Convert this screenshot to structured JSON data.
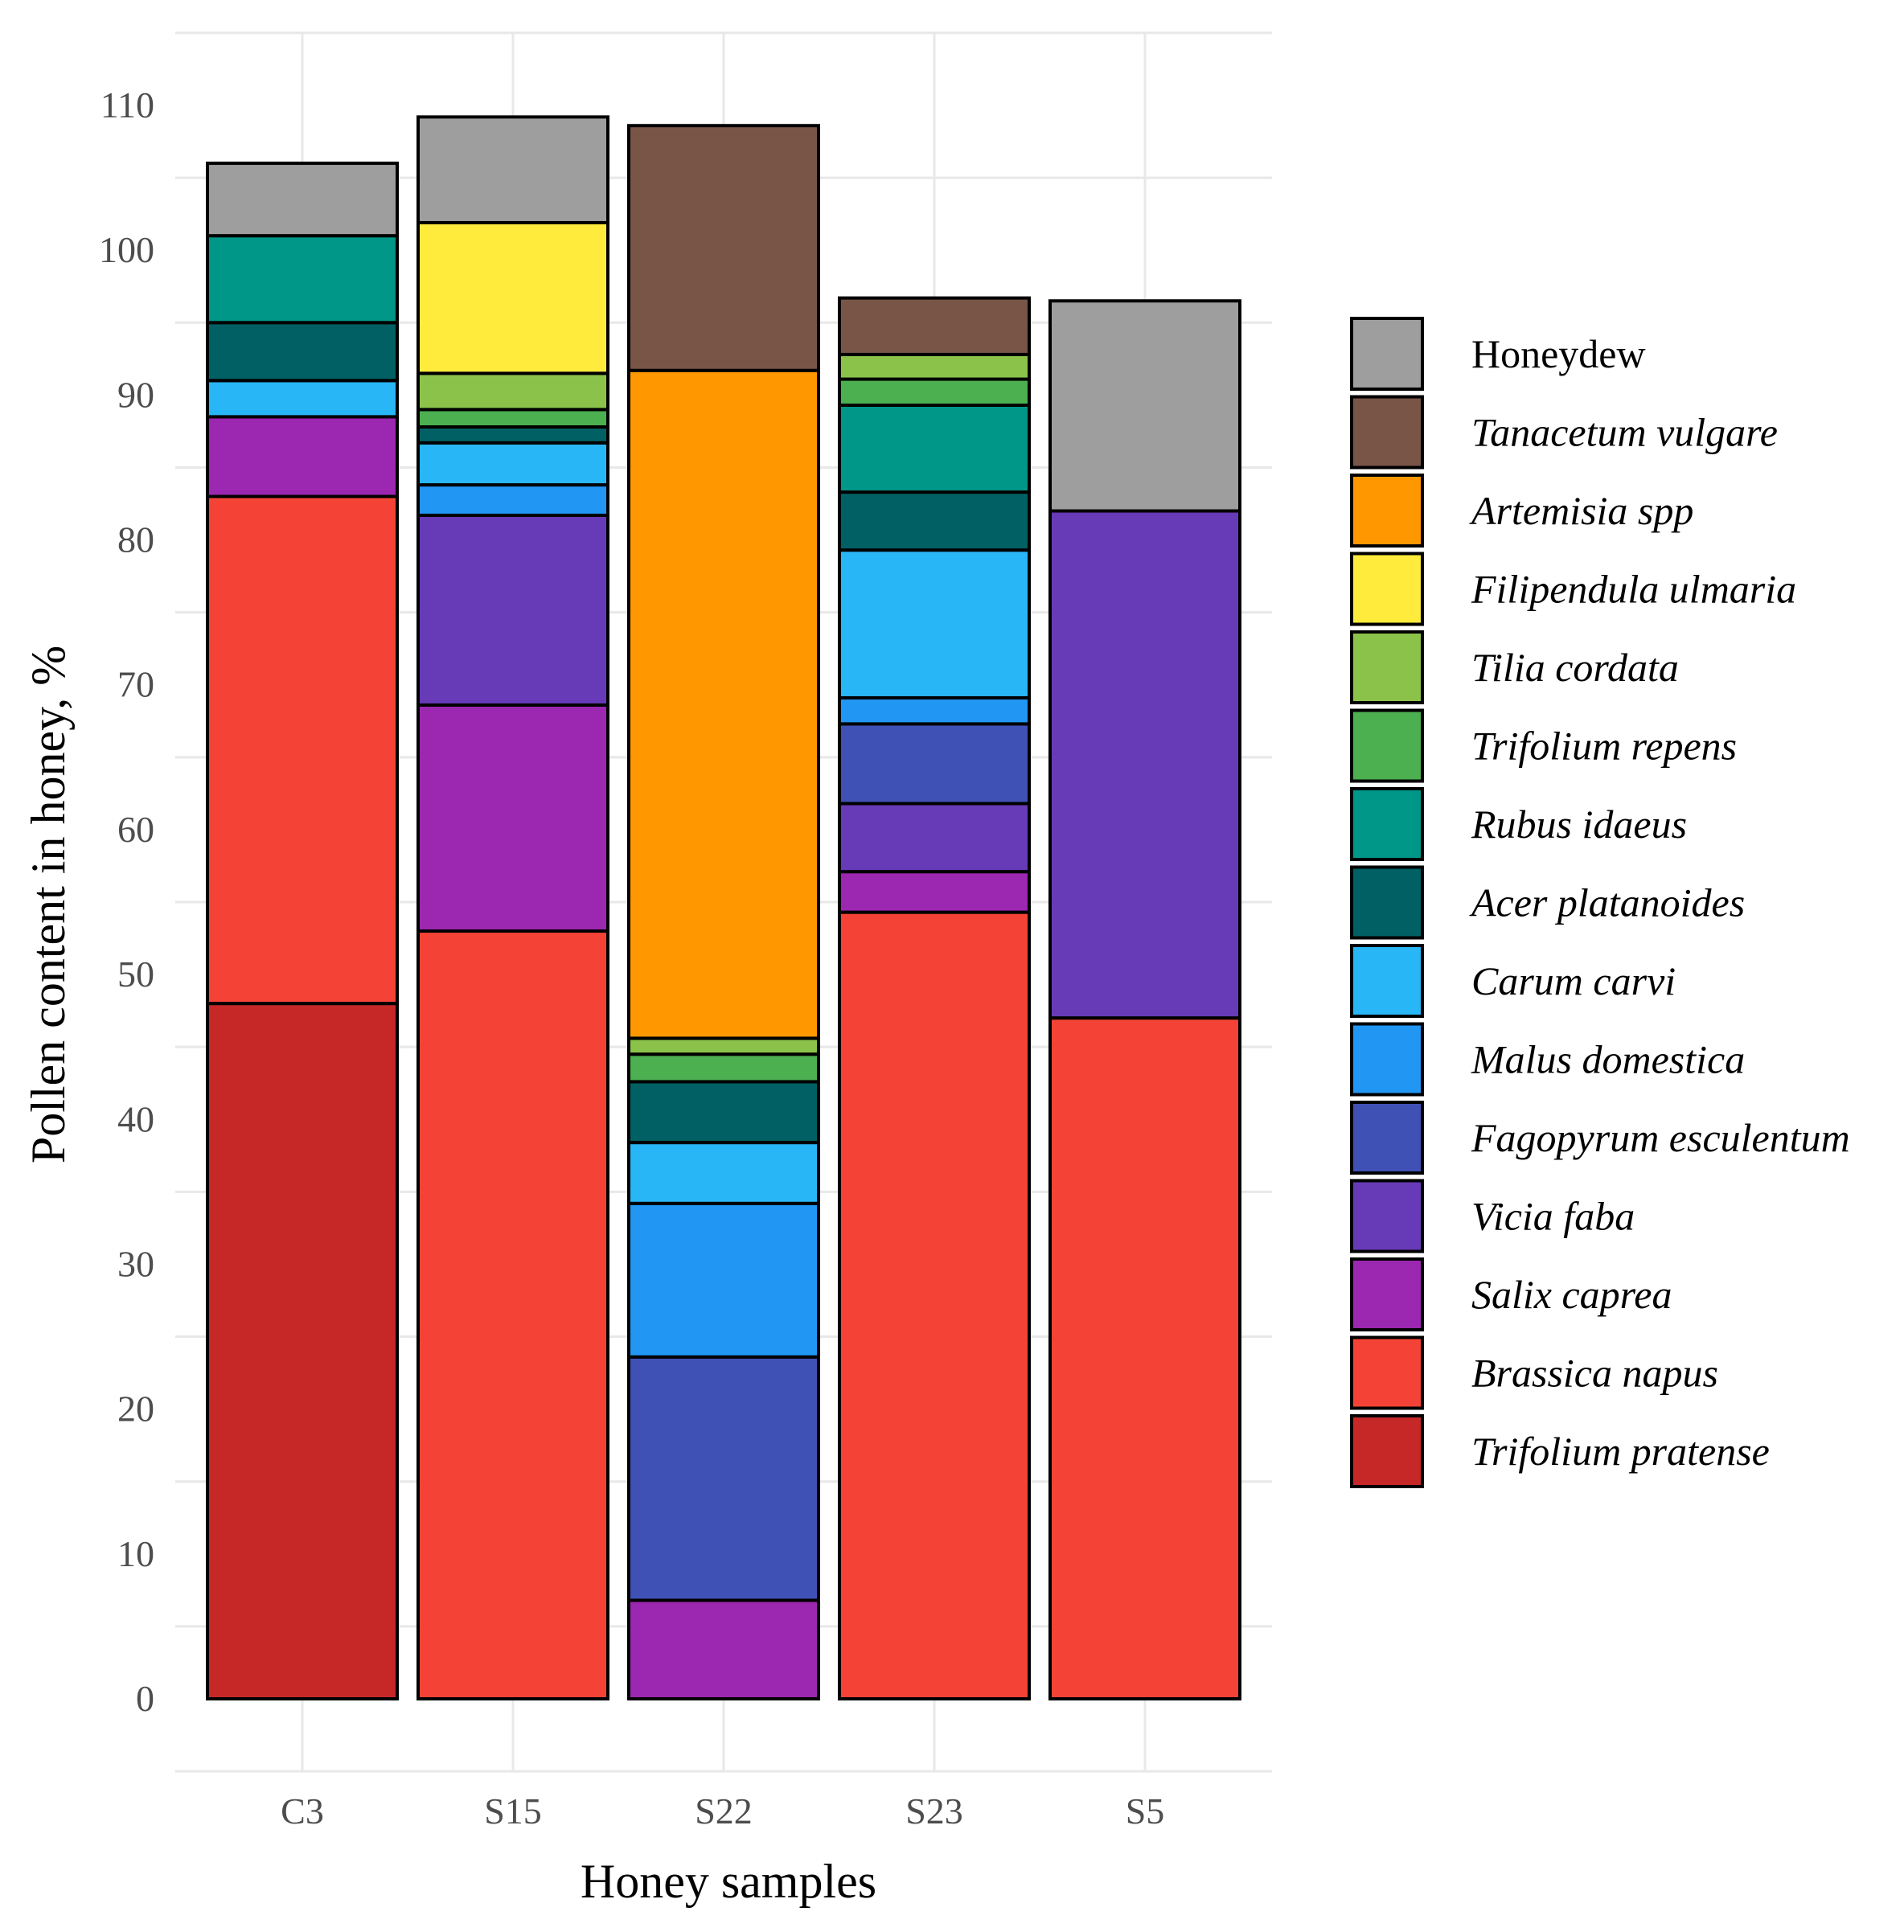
{
  "chart_data": {
    "type": "bar",
    "stacked": true,
    "title": "",
    "xlabel": "Honey samples",
    "ylabel": "Pollen content in honey, %",
    "ylim": [
      -5,
      115
    ],
    "yticks": [
      0,
      10,
      20,
      30,
      40,
      50,
      60,
      70,
      80,
      90,
      100,
      110
    ],
    "categories": [
      "C3",
      "S15",
      "S22",
      "S23",
      "S5"
    ],
    "legend_position": "right",
    "grid": true,
    "series": [
      {
        "name": "Trifolium pratense",
        "color": "#C62828",
        "italic": true,
        "values": [
          48,
          0,
          0,
          0,
          0
        ]
      },
      {
        "name": "Brassica napus",
        "color": "#F44336",
        "italic": true,
        "values": [
          35,
          53,
          0,
          54.3,
          47
        ]
      },
      {
        "name": "Salix caprea",
        "color": "#9C27B0",
        "italic": true,
        "values": [
          5.5,
          15.6,
          6.8,
          2.8,
          0
        ]
      },
      {
        "name": "Vicia faba",
        "color": "#673AB7",
        "italic": true,
        "values": [
          0,
          13.1,
          0,
          4.7,
          35
        ]
      },
      {
        "name": "Fagopyrum esculentum",
        "color": "#3F51B5",
        "italic": true,
        "values": [
          0,
          0,
          16.8,
          5.5,
          0
        ]
      },
      {
        "name": "Malus domestica",
        "color": "#2196F3",
        "italic": true,
        "values": [
          0,
          2.1,
          10.6,
          1.8,
          0
        ]
      },
      {
        "name": "Carum carvi",
        "color": "#29B6F6",
        "italic": true,
        "values": [
          2.5,
          2.9,
          4.2,
          10.2,
          0
        ]
      },
      {
        "name": "Acer platanoides",
        "color": "#006064",
        "italic": true,
        "values": [
          4,
          1.1,
          4.2,
          4,
          0
        ]
      },
      {
        "name": "Rubus idaeus",
        "color": "#009688",
        "italic": true,
        "values": [
          6,
          0,
          0,
          6,
          0
        ]
      },
      {
        "name": "Trifolium repens",
        "color": "#4CAF50",
        "italic": true,
        "values": [
          0,
          1.2,
          1.9,
          1.8,
          0
        ]
      },
      {
        "name": "Tilia cordata",
        "color": "#8BC34A",
        "italic": true,
        "values": [
          0,
          2.5,
          1.1,
          1.7,
          0
        ]
      },
      {
        "name": "Filipendula ulmaria",
        "color": "#FFEB3B",
        "italic": true,
        "values": [
          0,
          10.4,
          0,
          0,
          0
        ]
      },
      {
        "name": "Artemisia spp",
        "color": "#FF9800",
        "italic": true,
        "values": [
          0,
          0,
          46.1,
          0,
          0
        ]
      },
      {
        "name": "Tanacetum vulgare",
        "color": "#795548",
        "italic": true,
        "values": [
          0,
          0,
          16.9,
          3.9,
          0
        ]
      },
      {
        "name": "Honeydew",
        "color": "#9E9E9E",
        "italic": false,
        "values": [
          5,
          7.3,
          0,
          0,
          14.5
        ]
      }
    ]
  }
}
